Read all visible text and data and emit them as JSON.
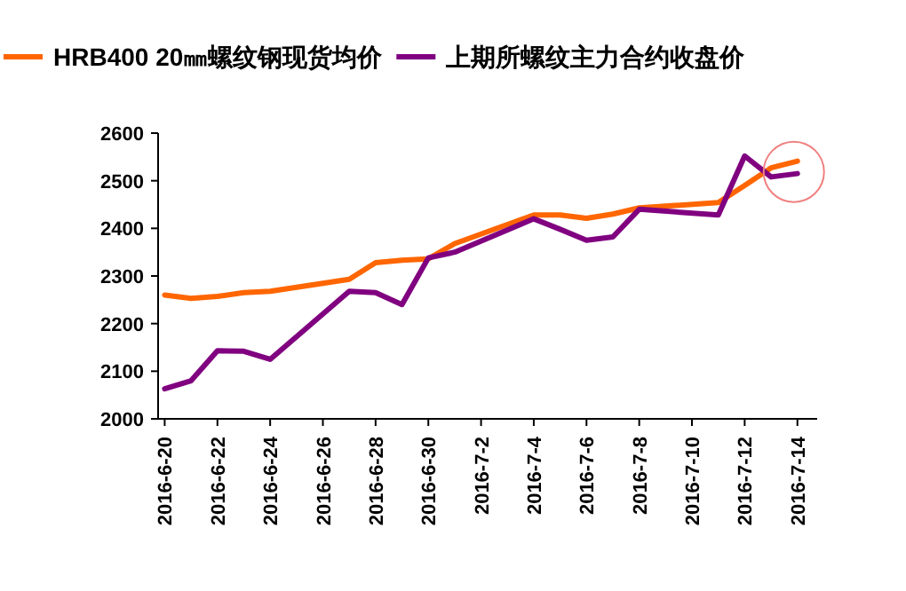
{
  "chart_data": {
    "type": "line",
    "x": [
      "2016-06-20",
      "2016-06-21",
      "2016-06-22",
      "2016-06-23",
      "2016-06-24",
      "2016-06-27",
      "2016-06-28",
      "2016-06-29",
      "2016-06-30",
      "2016-07-01",
      "2016-07-04",
      "2016-07-05",
      "2016-07-06",
      "2016-07-07",
      "2016-07-08",
      "2016-07-11",
      "2016-07-12",
      "2016-07-13",
      "2016-07-14"
    ],
    "series": [
      {
        "name": "HRB400 20㎜螺纹钢现货均价",
        "color": "#ff6600",
        "values": [
          2260,
          2253,
          2257,
          2265,
          2268,
          2293,
          2328,
          2333,
          2336,
          2368,
          2428,
          2428,
          2421,
          2430,
          2443,
          2454,
          2490,
          2527,
          2541
        ]
      },
      {
        "name": "上期所螺纹主力合约收盘价",
        "color": "#800080",
        "values": [
          2063,
          2080,
          2143,
          2142,
          2125,
          2268,
          2265,
          2240,
          2338,
          2350,
          2420,
          2398,
          2375,
          2382,
          2440,
          2428,
          2552,
          2508,
          2515
        ]
      }
    ],
    "xlim": [
      "2016-06-19T18:00",
      "2016-07-14T18:00"
    ],
    "xticks": [
      {
        "value": "2016-06-20",
        "label": "2016-6-20"
      },
      {
        "value": "2016-06-22",
        "label": "2016-6-22"
      },
      {
        "value": "2016-06-24",
        "label": "2016-6-24"
      },
      {
        "value": "2016-06-26",
        "label": "2016-6-26"
      },
      {
        "value": "2016-06-28",
        "label": "2016-6-28"
      },
      {
        "value": "2016-06-30",
        "label": "2016-6-30"
      },
      {
        "value": "2016-07-02",
        "label": "2016-7-2"
      },
      {
        "value": "2016-07-04",
        "label": "2016-7-4"
      },
      {
        "value": "2016-07-06",
        "label": "2016-7-6"
      },
      {
        "value": "2016-07-08",
        "label": "2016-7-8"
      },
      {
        "value": "2016-07-10",
        "label": "2016-7-10"
      },
      {
        "value": "2016-07-12",
        "label": "2016-7-12"
      },
      {
        "value": "2016-07-14",
        "label": "2016-7-14"
      }
    ],
    "ylim": [
      2000,
      2600
    ],
    "yticks": [
      2000,
      2100,
      2200,
      2300,
      2400,
      2500,
      2600
    ],
    "legend": "top",
    "grid": false,
    "marker": "none",
    "line_style": "solid"
  }
}
